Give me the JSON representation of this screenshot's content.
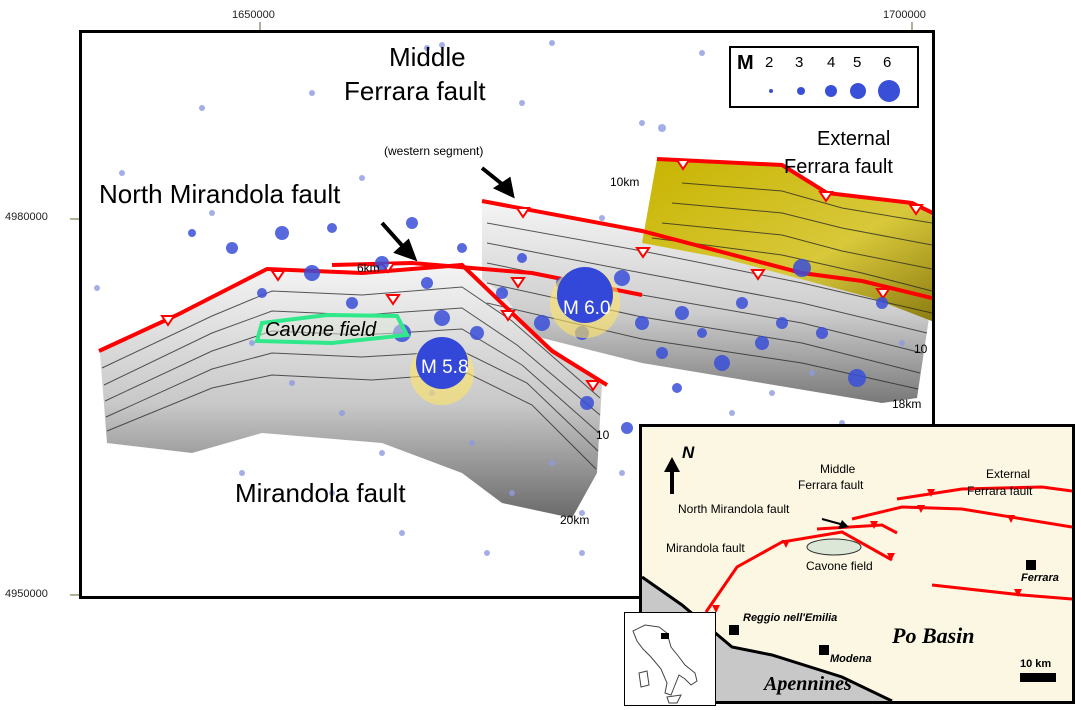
{
  "axes": {
    "x_ticks": [
      "1650000",
      "1700000"
    ],
    "y_ticks": [
      "4980000",
      "4950000"
    ]
  },
  "legend": {
    "title": "M",
    "magnitudes": [
      "2",
      "3",
      "4",
      "5",
      "6"
    ],
    "circle_color": "#3a4fd8"
  },
  "faults": {
    "middle_ferrara_line1": "Middle",
    "middle_ferrara_line2": "Ferrara fault",
    "middle_ferrara_note": "(western segment)",
    "external_ferrara_line1": "External",
    "external_ferrara_line2": "Ferrara fault",
    "north_mirandola": "North Mirandola fault",
    "mirandola": "Mirandola fault",
    "fault_color": "#ff0000"
  },
  "depth_labels": {
    "d10_top": "10km",
    "d6": "6km",
    "d10_right": "10",
    "d18": "18km",
    "d10_bottom": "10",
    "d20": "20km"
  },
  "events": {
    "m60": "M 6.0",
    "m58": "M 5.8"
  },
  "cavone": {
    "label": "Cavone field",
    "outline_color": "#2ee88a"
  },
  "inset_map": {
    "north": "N",
    "middle_ferrara_line1": "Middle",
    "middle_ferrara_line2": "Ferrara fault",
    "external_ferrara_line1": "External",
    "external_ferrara_line2": "Ferrara fault",
    "north_mirandola": "North Mirandola fault",
    "mirandola": "Mirandola fault",
    "cavone": "Cavone field",
    "ferrara": "Ferrara",
    "reggio": "Reggio nell'Emilia",
    "modena": "Modena",
    "po_basin": "Po Basin",
    "apennines": "Apennines",
    "scale": "10 km",
    "background": "#fbf7e3",
    "mountain_color": "#c8c8c8"
  }
}
